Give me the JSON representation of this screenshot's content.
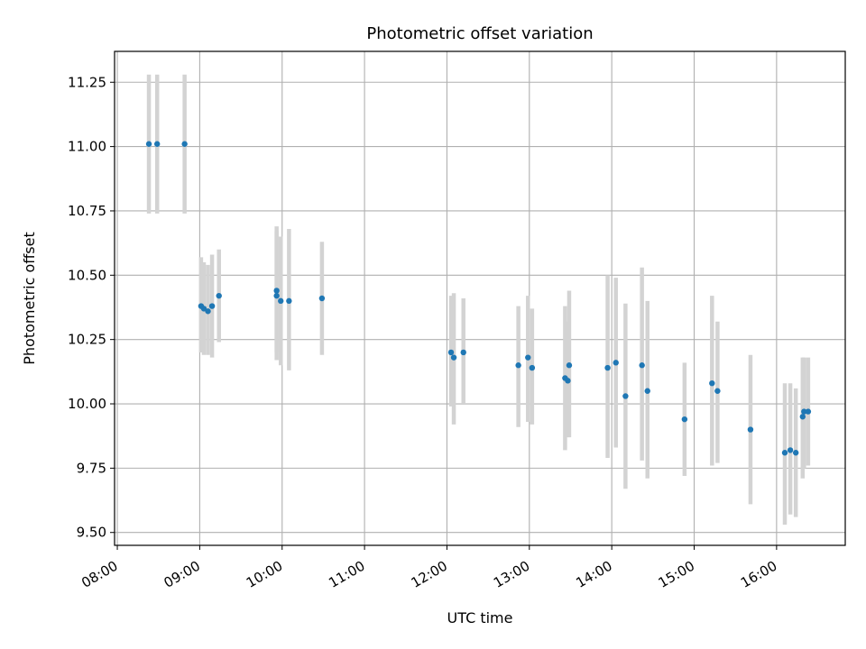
{
  "chart_data": {
    "type": "scatter",
    "title": "Photometric offset variation",
    "xlabel": "UTC time",
    "ylabel": "Photometric offset",
    "x_unit": "UTC time (HH:MM)",
    "xlim": [
      "07:58",
      "16:50"
    ],
    "ylim": [
      9.45,
      11.37
    ],
    "x_ticks": [
      "08:00",
      "09:00",
      "10:00",
      "11:00",
      "12:00",
      "13:00",
      "14:00",
      "15:00",
      "16:00"
    ],
    "y_ticks": [
      "9.50",
      "9.75",
      "10.00",
      "10.25",
      "10.50",
      "10.75",
      "11.00",
      "11.25"
    ],
    "grid": true,
    "marker_color": "#1f77b4",
    "errorbar_color": "#d3d3d3",
    "points": [
      {
        "x": "08:23",
        "y": 11.01,
        "yerr": [
          10.74,
          11.28
        ]
      },
      {
        "x": "08:29",
        "y": 11.01,
        "yerr": [
          10.74,
          11.28
        ]
      },
      {
        "x": "08:49",
        "y": 11.01,
        "yerr": [
          10.74,
          11.28
        ]
      },
      {
        "x": "09:01",
        "y": 10.38,
        "yerr": [
          10.2,
          10.57
        ]
      },
      {
        "x": "09:03",
        "y": 10.37,
        "yerr": [
          10.19,
          10.55
        ]
      },
      {
        "x": "09:06",
        "y": 10.36,
        "yerr": [
          10.19,
          10.54
        ]
      },
      {
        "x": "09:09",
        "y": 10.38,
        "yerr": [
          10.18,
          10.58
        ]
      },
      {
        "x": "09:14",
        "y": 10.42,
        "yerr": [
          10.24,
          10.6
        ]
      },
      {
        "x": "09:56",
        "y": 10.44,
        "yerr": [
          10.17,
          10.69
        ]
      },
      {
        "x": "09:56",
        "y": 10.42,
        "yerr": [
          10.2,
          10.67
        ]
      },
      {
        "x": "09:59",
        "y": 10.4,
        "yerr": [
          10.15,
          10.65
        ]
      },
      {
        "x": "10:05",
        "y": 10.4,
        "yerr": [
          10.13,
          10.68
        ]
      },
      {
        "x": "10:29",
        "y": 10.41,
        "yerr": [
          10.19,
          10.63
        ]
      },
      {
        "x": "12:03",
        "y": 10.2,
        "yerr": [
          9.99,
          10.42
        ]
      },
      {
        "x": "12:05",
        "y": 10.18,
        "yerr": [
          9.92,
          10.43
        ]
      },
      {
        "x": "12:12",
        "y": 10.2,
        "yerr": [
          10.0,
          10.41
        ]
      },
      {
        "x": "12:52",
        "y": 10.15,
        "yerr": [
          9.91,
          10.38
        ]
      },
      {
        "x": "12:59",
        "y": 10.18,
        "yerr": [
          9.93,
          10.42
        ]
      },
      {
        "x": "13:02",
        "y": 10.14,
        "yerr": [
          9.92,
          10.37
        ]
      },
      {
        "x": "13:26",
        "y": 10.1,
        "yerr": [
          9.82,
          10.38
        ]
      },
      {
        "x": "13:28",
        "y": 10.09,
        "yerr": [
          9.87,
          10.32
        ]
      },
      {
        "x": "13:29",
        "y": 10.15,
        "yerr": [
          9.87,
          10.44
        ]
      },
      {
        "x": "13:57",
        "y": 10.14,
        "yerr": [
          9.79,
          10.5
        ]
      },
      {
        "x": "14:03",
        "y": 10.16,
        "yerr": [
          9.83,
          10.49
        ]
      },
      {
        "x": "14:10",
        "y": 10.03,
        "yerr": [
          9.67,
          10.39
        ]
      },
      {
        "x": "14:22",
        "y": 10.15,
        "yerr": [
          9.78,
          10.53
        ]
      },
      {
        "x": "14:26",
        "y": 10.05,
        "yerr": [
          9.71,
          10.4
        ]
      },
      {
        "x": "14:53",
        "y": 9.94,
        "yerr": [
          9.72,
          10.16
        ]
      },
      {
        "x": "15:13",
        "y": 10.08,
        "yerr": [
          9.76,
          10.42
        ]
      },
      {
        "x": "15:17",
        "y": 10.05,
        "yerr": [
          9.77,
          10.32
        ]
      },
      {
        "x": "15:41",
        "y": 9.9,
        "yerr": [
          9.61,
          10.19
        ]
      },
      {
        "x": "16:06",
        "y": 9.81,
        "yerr": [
          9.53,
          10.08
        ]
      },
      {
        "x": "16:10",
        "y": 9.82,
        "yerr": [
          9.57,
          10.08
        ]
      },
      {
        "x": "16:14",
        "y": 9.81,
        "yerr": [
          9.56,
          10.06
        ]
      },
      {
        "x": "16:19",
        "y": 9.95,
        "yerr": [
          9.71,
          10.18
        ]
      },
      {
        "x": "16:20",
        "y": 9.97,
        "yerr": [
          9.75,
          10.18
        ]
      },
      {
        "x": "16:23",
        "y": 9.97,
        "yerr": [
          9.76,
          10.18
        ]
      }
    ]
  }
}
